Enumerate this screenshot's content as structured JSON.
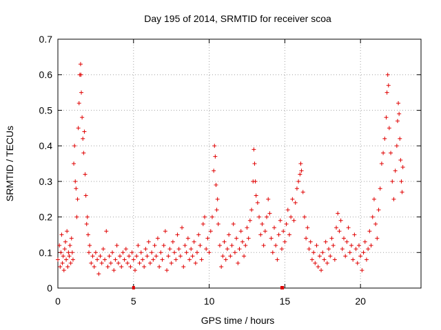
{
  "chart_data": {
    "type": "scatter",
    "title": "Day 195 of 2014, SRMTID for receiver scoa",
    "xlabel": "GPS time / hours",
    "ylabel": "SRMTID / TECUs",
    "xlim": [
      0,
      24
    ],
    "ylim": [
      0,
      0.7
    ],
    "xticks": [
      0,
      5,
      10,
      15,
      20
    ],
    "xtick_labels": [
      "0",
      "5",
      "10",
      "15",
      "20"
    ],
    "yticks": [
      0,
      0.1,
      0.2,
      0.3,
      0.4,
      0.5,
      0.6,
      0.7
    ],
    "ytick_labels": [
      "0",
      "0.1",
      "0.2",
      "0.3",
      "0.4",
      "0.5",
      "0.6",
      "0.7"
    ],
    "grid": true,
    "marker": "plus",
    "color": "#e00000",
    "series": [
      {
        "name": "SRMTID",
        "points": [
          [
            0.0,
            0.08
          ],
          [
            0.1,
            0.12
          ],
          [
            0.15,
            0.06
          ],
          [
            0.2,
            0.1
          ],
          [
            0.25,
            0.15
          ],
          [
            0.3,
            0.07
          ],
          [
            0.35,
            0.09
          ],
          [
            0.4,
            0.05
          ],
          [
            0.45,
            0.11
          ],
          [
            0.5,
            0.13
          ],
          [
            0.55,
            0.08
          ],
          [
            0.6,
            0.16
          ],
          [
            0.65,
            0.06
          ],
          [
            0.7,
            0.1
          ],
          [
            0.75,
            0.09
          ],
          [
            0.8,
            0.12
          ],
          [
            0.85,
            0.07
          ],
          [
            0.9,
            0.14
          ],
          [
            0.95,
            0.1
          ],
          [
            1.0,
            0.08
          ],
          [
            1.05,
            0.35
          ],
          [
            1.1,
            0.4
          ],
          [
            1.15,
            0.3
          ],
          [
            1.2,
            0.28
          ],
          [
            1.25,
            0.2
          ],
          [
            1.3,
            0.25
          ],
          [
            1.35,
            0.45
          ],
          [
            1.4,
            0.52
          ],
          [
            1.45,
            0.6
          ],
          [
            1.5,
            0.63
          ],
          [
            1.52,
            0.6
          ],
          [
            1.55,
            0.55
          ],
          [
            1.6,
            0.48
          ],
          [
            1.65,
            0.42
          ],
          [
            1.7,
            0.38
          ],
          [
            1.75,
            0.44
          ],
          [
            1.8,
            0.32
          ],
          [
            1.85,
            0.26
          ],
          [
            1.9,
            0.18
          ],
          [
            1.95,
            0.2
          ],
          [
            2.0,
            0.15
          ],
          [
            2.05,
            0.1
          ],
          [
            2.1,
            0.12
          ],
          [
            2.2,
            0.07
          ],
          [
            2.3,
            0.09
          ],
          [
            2.4,
            0.06
          ],
          [
            2.5,
            0.1
          ],
          [
            2.6,
            0.08
          ],
          [
            2.7,
            0.04
          ],
          [
            2.8,
            0.09
          ],
          [
            2.9,
            0.07
          ],
          [
            3.0,
            0.11
          ],
          [
            3.1,
            0.08
          ],
          [
            3.2,
            0.16
          ],
          [
            3.3,
            0.06
          ],
          [
            3.4,
            0.09
          ],
          [
            3.5,
            0.07
          ],
          [
            3.6,
            0.1
          ],
          [
            3.7,
            0.05
          ],
          [
            3.8,
            0.08
          ],
          [
            3.9,
            0.12
          ],
          [
            4.0,
            0.07
          ],
          [
            4.1,
            0.09
          ],
          [
            4.2,
            0.06
          ],
          [
            4.3,
            0.1
          ],
          [
            4.4,
            0.08
          ],
          [
            4.5,
            0.11
          ],
          [
            4.6,
            0.07
          ],
          [
            4.7,
            0.09
          ],
          [
            4.8,
            0.06
          ],
          [
            4.9,
            0.1
          ],
          [
            5.0,
            0.08
          ],
          [
            5.1,
            0.05
          ],
          [
            5.2,
            0.09
          ],
          [
            5.3,
            0.12
          ],
          [
            5.4,
            0.07
          ],
          [
            5.5,
            0.1
          ],
          [
            5.6,
            0.08
          ],
          [
            5.7,
            0.06
          ],
          [
            5.8,
            0.11
          ],
          [
            5.9,
            0.09
          ],
          [
            6.0,
            0.13
          ],
          [
            6.1,
            0.07
          ],
          [
            6.2,
            0.1
          ],
          [
            6.3,
            0.08
          ],
          [
            6.4,
            0.12
          ],
          [
            6.5,
            0.09
          ],
          [
            6.6,
            0.14
          ],
          [
            6.7,
            0.06
          ],
          [
            6.8,
            0.1
          ],
          [
            6.9,
            0.08
          ],
          [
            7.0,
            0.12
          ],
          [
            7.1,
            0.16
          ],
          [
            7.2,
            0.05
          ],
          [
            7.3,
            0.09
          ],
          [
            7.4,
            0.11
          ],
          [
            7.5,
            0.07
          ],
          [
            7.6,
            0.13
          ],
          [
            7.7,
            0.1
          ],
          [
            7.8,
            0.08
          ],
          [
            7.9,
            0.15
          ],
          [
            8.0,
            0.11
          ],
          [
            8.1,
            0.09
          ],
          [
            8.2,
            0.17
          ],
          [
            8.3,
            0.06
          ],
          [
            8.4,
            0.12
          ],
          [
            8.5,
            0.1
          ],
          [
            8.6,
            0.14
          ],
          [
            8.7,
            0.08
          ],
          [
            8.8,
            0.11
          ],
          [
            8.9,
            0.09
          ],
          [
            9.0,
            0.13
          ],
          [
            9.1,
            0.07
          ],
          [
            9.2,
            0.1
          ],
          [
            9.3,
            0.15
          ],
          [
            9.4,
            0.12
          ],
          [
            9.5,
            0.08
          ],
          [
            9.6,
            0.18
          ],
          [
            9.7,
            0.2
          ],
          [
            9.8,
            0.11
          ],
          [
            9.9,
            0.14
          ],
          [
            10.0,
            0.1
          ],
          [
            10.1,
            0.16
          ],
          [
            10.2,
            0.2
          ],
          [
            10.3,
            0.33
          ],
          [
            10.35,
            0.4
          ],
          [
            10.4,
            0.37
          ],
          [
            10.45,
            0.29
          ],
          [
            10.5,
            0.22
          ],
          [
            10.55,
            0.25
          ],
          [
            10.6,
            0.18
          ],
          [
            10.7,
            0.12
          ],
          [
            10.8,
            0.06
          ],
          [
            10.9,
            0.09
          ],
          [
            11.0,
            0.13
          ],
          [
            11.1,
            0.08
          ],
          [
            11.2,
            0.11
          ],
          [
            11.3,
            0.15
          ],
          [
            11.4,
            0.09
          ],
          [
            11.5,
            0.12
          ],
          [
            11.6,
            0.18
          ],
          [
            11.7,
            0.1
          ],
          [
            11.8,
            0.14
          ],
          [
            11.9,
            0.07
          ],
          [
            12.0,
            0.11
          ],
          [
            12.1,
            0.16
          ],
          [
            12.2,
            0.13
          ],
          [
            12.3,
            0.09
          ],
          [
            12.4,
            0.12
          ],
          [
            12.5,
            0.17
          ],
          [
            12.6,
            0.14
          ],
          [
            12.7,
            0.19
          ],
          [
            12.8,
            0.22
          ],
          [
            12.9,
            0.3
          ],
          [
            12.95,
            0.39
          ],
          [
            13.0,
            0.35
          ],
          [
            13.05,
            0.3
          ],
          [
            13.1,
            0.26
          ],
          [
            13.2,
            0.24
          ],
          [
            13.3,
            0.2
          ],
          [
            13.4,
            0.15
          ],
          [
            13.5,
            0.18
          ],
          [
            13.6,
            0.12
          ],
          [
            13.7,
            0.16
          ],
          [
            13.8,
            0.2
          ],
          [
            13.9,
            0.25
          ],
          [
            14.0,
            0.21
          ],
          [
            14.1,
            0.14
          ],
          [
            14.2,
            0.1
          ],
          [
            14.3,
            0.17
          ],
          [
            14.4,
            0.12
          ],
          [
            14.5,
            0.08
          ],
          [
            14.6,
            0.15
          ],
          [
            14.7,
            0.19
          ],
          [
            14.8,
            0.11
          ],
          [
            14.9,
            0.16
          ],
          [
            15.0,
            0.13
          ],
          [
            15.1,
            0.18
          ],
          [
            15.2,
            0.22
          ],
          [
            15.3,
            0.15
          ],
          [
            15.4,
            0.2
          ],
          [
            15.5,
            0.25
          ],
          [
            15.6,
            0.19
          ],
          [
            15.7,
            0.24
          ],
          [
            15.8,
            0.28
          ],
          [
            15.9,
            0.3
          ],
          [
            16.0,
            0.32
          ],
          [
            16.05,
            0.35
          ],
          [
            16.1,
            0.33
          ],
          [
            16.2,
            0.27
          ],
          [
            16.3,
            0.2
          ],
          [
            16.4,
            0.14
          ],
          [
            16.5,
            0.17
          ],
          [
            16.6,
            0.11
          ],
          [
            16.7,
            0.13
          ],
          [
            16.8,
            0.08
          ],
          [
            16.9,
            0.1
          ],
          [
            17.0,
            0.07
          ],
          [
            17.1,
            0.12
          ],
          [
            17.2,
            0.06
          ],
          [
            17.3,
            0.09
          ],
          [
            17.4,
            0.05
          ],
          [
            17.5,
            0.1
          ],
          [
            17.6,
            0.08
          ],
          [
            17.7,
            0.13
          ],
          [
            17.8,
            0.07
          ],
          [
            17.9,
            0.11
          ],
          [
            18.0,
            0.09
          ],
          [
            18.1,
            0.14
          ],
          [
            18.2,
            0.12
          ],
          [
            18.3,
            0.08
          ],
          [
            18.4,
            0.17
          ],
          [
            18.5,
            0.21
          ],
          [
            18.6,
            0.16
          ],
          [
            18.7,
            0.19
          ],
          [
            18.8,
            0.11
          ],
          [
            18.9,
            0.14
          ],
          [
            19.0,
            0.09
          ],
          [
            19.1,
            0.13
          ],
          [
            19.2,
            0.17
          ],
          [
            19.3,
            0.1
          ],
          [
            19.4,
            0.12
          ],
          [
            19.5,
            0.08
          ],
          [
            19.6,
            0.15
          ],
          [
            19.7,
            0.11
          ],
          [
            19.8,
            0.07
          ],
          [
            19.9,
            0.12
          ],
          [
            20.0,
            0.09
          ],
          [
            20.1,
            0.05
          ],
          [
            20.2,
            0.1
          ],
          [
            20.3,
            0.13
          ],
          [
            20.4,
            0.08
          ],
          [
            20.5,
            0.11
          ],
          [
            20.6,
            0.16
          ],
          [
            20.7,
            0.12
          ],
          [
            20.8,
            0.2
          ],
          [
            20.9,
            0.25
          ],
          [
            21.0,
            0.18
          ],
          [
            21.1,
            0.14
          ],
          [
            21.2,
            0.22
          ],
          [
            21.3,
            0.28
          ],
          [
            21.4,
            0.35
          ],
          [
            21.5,
            0.38
          ],
          [
            21.6,
            0.42
          ],
          [
            21.7,
            0.48
          ],
          [
            21.75,
            0.55
          ],
          [
            21.8,
            0.6
          ],
          [
            21.85,
            0.57
          ],
          [
            21.9,
            0.45
          ],
          [
            22.0,
            0.38
          ],
          [
            22.1,
            0.3
          ],
          [
            22.2,
            0.25
          ],
          [
            22.3,
            0.33
          ],
          [
            22.4,
            0.4
          ],
          [
            22.45,
            0.47
          ],
          [
            22.5,
            0.52
          ],
          [
            22.55,
            0.49
          ],
          [
            22.6,
            0.42
          ],
          [
            22.65,
            0.36
          ],
          [
            22.7,
            0.3
          ],
          [
            22.75,
            0.27
          ],
          [
            22.8,
            0.34
          ]
        ]
      }
    ],
    "zero_markers": [
      5.0,
      14.8,
      14.85
    ]
  }
}
